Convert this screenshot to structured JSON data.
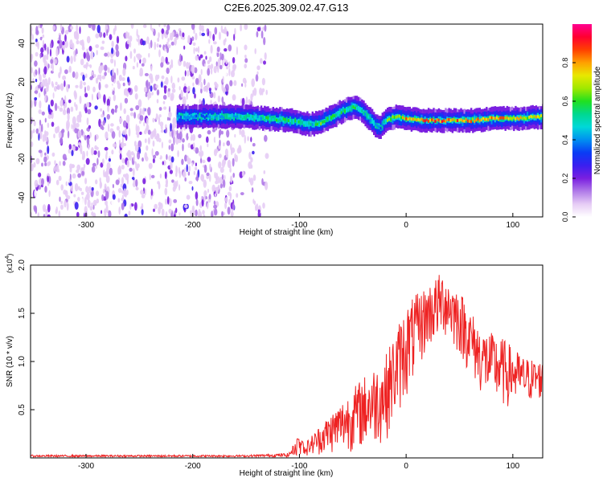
{
  "title": "C2E6.2025.309.02.47.G13",
  "chart_data": [
    {
      "type": "heatmap",
      "xlabel": "Height of straight line (km)",
      "ylabel": "Frequency (Hz)",
      "xlim": [
        -352,
        128
      ],
      "ylim": [
        -50,
        50
      ],
      "xticks": [
        -300,
        -200,
        -100,
        0,
        100
      ],
      "yticks": [
        -40,
        -20,
        0,
        20,
        40
      ],
      "xtick_labels": [
        "-300",
        "-200",
        "-100",
        "0",
        "100"
      ],
      "ytick_labels": [
        "-40",
        "-20",
        "0",
        "20",
        "40"
      ],
      "noise_region_x": [
        -352,
        -130
      ],
      "ridge": {
        "x": [
          -215,
          -150,
          -130,
          -110,
          -100,
          -90,
          -80,
          -70,
          -60,
          -50,
          -45,
          -40,
          -35,
          -30,
          -25,
          -20,
          -10,
          0,
          20,
          40,
          60,
          80,
          100,
          128
        ],
        "center_freq": [
          2,
          2,
          1,
          0,
          -1,
          -2,
          -1,
          2,
          5,
          7,
          6,
          4,
          1,
          -2,
          -4,
          0,
          2,
          1,
          0,
          0,
          0,
          1,
          1,
          2
        ],
        "peak_amplitude": [
          0.4,
          0.5,
          0.55,
          0.6,
          0.55,
          0.5,
          0.6,
          0.55,
          0.6,
          0.55,
          0.55,
          0.5,
          0.5,
          0.45,
          0.4,
          0.6,
          0.75,
          0.8,
          0.85,
          0.85,
          0.8,
          0.85,
          0.8,
          0.7
        ]
      },
      "colorbar": {
        "label": "Normalized spectral amplitude",
        "range": [
          0,
          1
        ],
        "ticks": [
          0.0,
          0.2,
          0.4,
          0.6,
          0.8
        ],
        "tick_labels": [
          "0.0",
          "0.2",
          "0.4",
          "0.6",
          "0.8"
        ],
        "colors": [
          "#ffffff",
          "#e6ccf5",
          "#b07ae8",
          "#7a1fe0",
          "#3a1ff0",
          "#0a3cf5",
          "#0090f0",
          "#00d8d8",
          "#00d890",
          "#20e020",
          "#a0e800",
          "#e8e800",
          "#ffa000",
          "#ff4000",
          "#ff0030",
          "#ff0090"
        ]
      }
    },
    {
      "type": "line",
      "xlabel": "Height of straight line (km)",
      "ylabel": "SNR (10 * v/v)",
      "scale_label": "(x10",
      "scale_exponent": "4",
      "scale_close": ")",
      "xlim": [
        -352,
        128
      ],
      "ylim": [
        0,
        2.0
      ],
      "xticks": [
        -300,
        -200,
        -100,
        0,
        100
      ],
      "yticks": [
        0.5,
        1.0,
        1.5,
        2.0
      ],
      "xtick_labels": [
        "-300",
        "-200",
        "-100",
        "0",
        "100"
      ],
      "ytick_labels": [
        "0.5",
        "1.0",
        "1.5",
        "2.0"
      ],
      "color": "#ee2222",
      "series": [
        {
          "name": "SNR",
          "envelope_x": [
            -352,
            -300,
            -200,
            -150,
            -110,
            -100,
            -95,
            -80,
            -60,
            -40,
            -20,
            0,
            20,
            35,
            50,
            70,
            90,
            110,
            128
          ],
          "envelope_upper": [
            0.03,
            0.03,
            0.03,
            0.03,
            0.05,
            0.25,
            0.15,
            0.35,
            0.6,
            0.85,
            1.05,
            1.6,
            1.8,
            1.95,
            1.75,
            1.35,
            1.25,
            1.05,
            1.0
          ],
          "envelope_lower": [
            0.01,
            0.01,
            0.01,
            0.01,
            0.01,
            0.03,
            0.02,
            0.03,
            0.05,
            0.08,
            0.15,
            0.6,
            1.1,
            1.25,
            1.05,
            0.65,
            0.5,
            0.55,
            0.6
          ]
        }
      ]
    }
  ]
}
